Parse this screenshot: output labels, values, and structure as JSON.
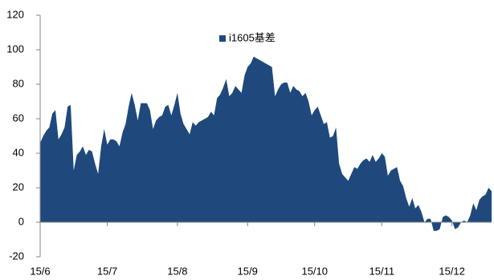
{
  "chart_data": {
    "type": "area",
    "categories": [
      "15/6",
      null,
      null,
      null,
      null,
      null,
      null,
      null,
      null,
      null,
      null,
      null,
      null,
      null,
      null,
      null,
      null,
      null,
      null,
      null,
      null,
      null,
      "15/7",
      null,
      null,
      null,
      null,
      null,
      null,
      null,
      null,
      null,
      null,
      null,
      null,
      null,
      null,
      null,
      null,
      null,
      null,
      null,
      null,
      null,
      null,
      "15/8",
      null,
      null,
      null,
      null,
      null,
      null,
      null,
      null,
      null,
      null,
      null,
      null,
      null,
      null,
      null,
      null,
      null,
      null,
      null,
      null,
      null,
      null,
      "15/9",
      null,
      null,
      null,
      null,
      null,
      null,
      null,
      null,
      null,
      null,
      null,
      null,
      null,
      null,
      null,
      null,
      null,
      null,
      null,
      null,
      null,
      "15/10",
      null,
      null,
      null,
      null,
      null,
      null,
      null,
      null,
      null,
      null,
      null,
      null,
      null,
      null,
      null,
      null,
      null,
      null,
      null,
      null,
      null,
      "15/11",
      null,
      null,
      null,
      null,
      null,
      null,
      null,
      null,
      null,
      null,
      null,
      null,
      null,
      null,
      null,
      null,
      null,
      null,
      null,
      null,
      null,
      null,
      "15/12",
      null,
      null,
      null,
      null,
      null,
      null,
      null,
      null,
      null,
      null,
      null,
      null,
      null
    ],
    "series": [
      {
        "name": "i1605基差",
        "color": "#1f497d",
        "values": [
          46,
          50,
          53,
          55,
          63,
          65,
          48,
          51,
          55,
          67,
          68,
          30,
          39,
          41,
          44,
          39,
          42,
          41,
          34,
          28,
          44,
          54,
          45,
          48,
          48,
          47,
          44,
          52,
          57,
          67,
          75,
          68,
          59,
          69,
          69,
          69,
          65,
          54,
          59,
          61,
          62,
          67,
          68,
          62,
          68,
          75,
          63,
          57,
          54,
          51,
          58,
          56,
          58,
          59,
          60,
          61,
          64,
          62,
          72,
          74,
          78,
          83,
          73,
          75,
          79,
          77,
          75,
          85,
          90,
          92,
          96,
          95,
          94,
          93,
          92,
          91,
          90,
          73,
          77,
          80,
          81,
          81,
          75,
          79,
          77,
          76,
          73,
          75,
          70,
          62,
          65,
          67,
          62,
          57,
          58,
          49,
          50,
          55,
          34,
          28,
          26,
          24,
          28,
          32,
          31,
          34,
          36,
          37,
          35,
          39,
          35,
          37,
          40,
          38,
          27,
          30,
          31,
          32,
          24,
          21,
          14,
          9,
          14,
          8,
          10,
          6,
          0,
          2,
          2,
          -5,
          -5,
          -4,
          3,
          4,
          3,
          1,
          -4,
          -3,
          0,
          1,
          0,
          4,
          11,
          7,
          13,
          15,
          16,
          20,
          18
        ]
      }
    ],
    "ylim": [
      -20,
      120
    ],
    "yticks": [
      -20,
      0,
      20,
      40,
      60,
      80,
      100,
      120
    ],
    "legend": "top"
  }
}
